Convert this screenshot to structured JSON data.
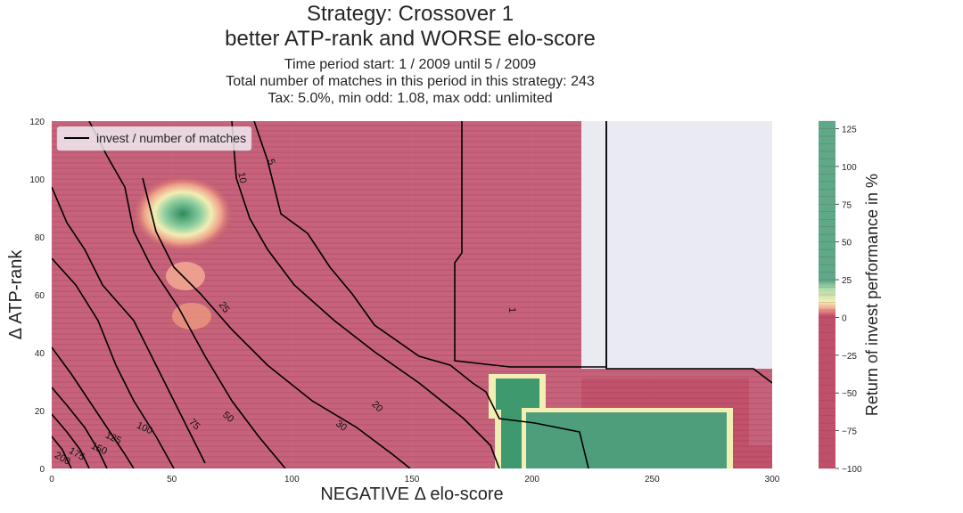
{
  "chart_data": {
    "type": "contour",
    "title_lines": [
      "Strategy: Crossover 1",
      "better ATP-rank and WORSE elo-score"
    ],
    "subtitle_lines": [
      "Time period start: 1 / 2009 until 5 / 2009",
      "Total number of matches in this period in this strategy: 243",
      "Tax: 5.0%, min odd: 1.08, max odd: unlimited"
    ],
    "xlabel": "NEGATIVE Δ elo-score",
    "ylabel": "Δ ATP-rank",
    "xlim": [
      0,
      300
    ],
    "ylim": [
      0,
      120
    ],
    "xticks": [
      0,
      50,
      100,
      150,
      200,
      250,
      300
    ],
    "yticks": [
      0,
      20,
      40,
      60,
      80,
      100,
      120
    ],
    "grid": true,
    "legend": {
      "position": "top-left",
      "entries": [
        "invest / number of matches"
      ]
    },
    "colorbar": {
      "label": "Return of invest performance in %",
      "ticks": [
        125,
        100,
        75,
        50,
        25,
        0,
        -25,
        -50,
        -75,
        -100
      ],
      "range": [
        -100,
        130
      ],
      "colors": {
        "negative": "#c0506a",
        "neutral_low": "#f0a590",
        "neutral": "#f2eeb4",
        "neutral_high": "#a8d8a8",
        "positive": "#2e8b5e"
      }
    },
    "contour_labels": [
      "1",
      "5",
      "10",
      "20",
      "25",
      "30",
      "50",
      "75",
      "100",
      "125",
      "150",
      "175",
      "200"
    ],
    "regions": [
      {
        "name": "negative-return",
        "return_pct": -100,
        "x": [
          0,
          220
        ],
        "y": [
          0,
          120
        ]
      },
      {
        "name": "positive-return-center",
        "return_pct": 125,
        "x": [
          185,
          205
        ],
        "y": [
          12,
          38
        ]
      },
      {
        "name": "positive-return-right",
        "return_pct": 125,
        "x": [
          190,
          285
        ],
        "y": [
          0,
          22
        ]
      },
      {
        "name": "positive-return-island",
        "return_pct": 125,
        "x": [
          50,
          65
        ],
        "y": [
          80,
          95
        ]
      },
      {
        "name": "no-data",
        "return_pct": null,
        "x": [
          220,
          300
        ],
        "y": [
          30,
          120
        ]
      }
    ]
  }
}
